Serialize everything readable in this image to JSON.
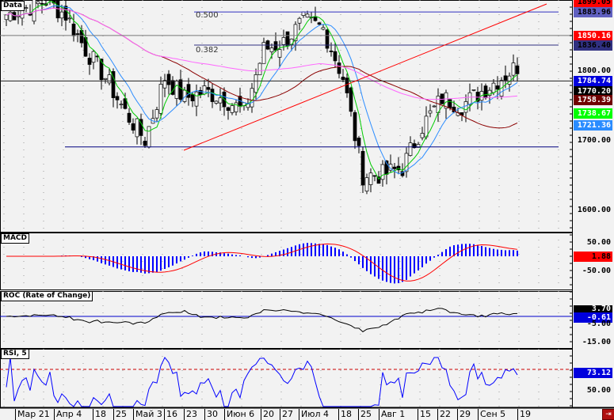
{
  "panes": {
    "main": "Data",
    "macd": "MACD",
    "roc": "ROC (Rate of Change)",
    "rsi": "RSI, 5"
  },
  "fib_labels": [
    "0.500",
    "0.382"
  ],
  "price_labels": [
    {
      "text": "1899.05",
      "bg": "#ff0000",
      "fg": "#000000"
    },
    {
      "text": "1883.96",
      "bg": "#6060c0",
      "fg": "#000000"
    },
    {
      "text": "1850.16",
      "bg": "#ff0000",
      "fg": "#ffffff"
    },
    {
      "text": "1836.40",
      "bg": "#303080",
      "fg": "#000000"
    },
    {
      "text": "1784.74",
      "bg": "#0000dd",
      "fg": "#ffffff"
    },
    {
      "text": "1770.20",
      "bg": "#000000",
      "fg": "#ffffff"
    },
    {
      "text": "1758.39",
      "bg": "#700000",
      "fg": "#ffffff"
    },
    {
      "text": "1738.67",
      "bg": "#00ff00",
      "fg": "#ffffff"
    },
    {
      "text": "1721.36",
      "bg": "#2a8cff",
      "fg": "#ffffff"
    }
  ],
  "axis_labels": {
    "main": [
      "1800.00",
      "1700.00",
      "1600.00"
    ],
    "macd": [
      "50.00",
      "-50.00"
    ],
    "roc": [
      "5.00",
      "-5.00",
      "-15.00"
    ],
    "rsi": [
      "50.00"
    ]
  },
  "indicator_values": {
    "macd": "1.88",
    "roc_a": "3.70",
    "roc_b": "-0.61",
    "rsi": "73.12"
  },
  "x_labels": [
    "Мар 21",
    "Апр 4",
    "18",
    "25",
    "Май 3",
    "16",
    "23",
    "30",
    "Июн 6",
    "20",
    "27",
    "Июл 4",
    "18",
    "25",
    "Авг 1",
    "15",
    "22",
    "29",
    "Сен 5",
    "19"
  ],
  "exit_icon": "exit-icon",
  "chart_data": {
    "type": "candlestick",
    "title": "Data",
    "weekly_close": [
      1880,
      1890,
      1900,
      1880,
      1830,
      1790,
      1740,
      1700,
      1790,
      1760,
      1770,
      1760,
      1740,
      1830,
      1840,
      1870,
      1860,
      1790,
      1650,
      1650,
      1660,
      1720,
      1760,
      1750,
      1770
    ],
    "ylim": [
      1570,
      1900
    ],
    "levels": {
      "fib_500": 1883.96,
      "fib_382": 1836.4,
      "resistance": 1850.16,
      "horizontal": 1784.74,
      "support": 1690,
      "last": 1770.2,
      "ma_long": 1758.39,
      "ma_fast": 1738.67,
      "ma_mid": 1721.36
    },
    "macd_last": 1.88,
    "roc_last": -0.61,
    "rsi_last": 73.12,
    "rsi_ylim": [
      0,
      100
    ],
    "rsi_level": 80
  }
}
